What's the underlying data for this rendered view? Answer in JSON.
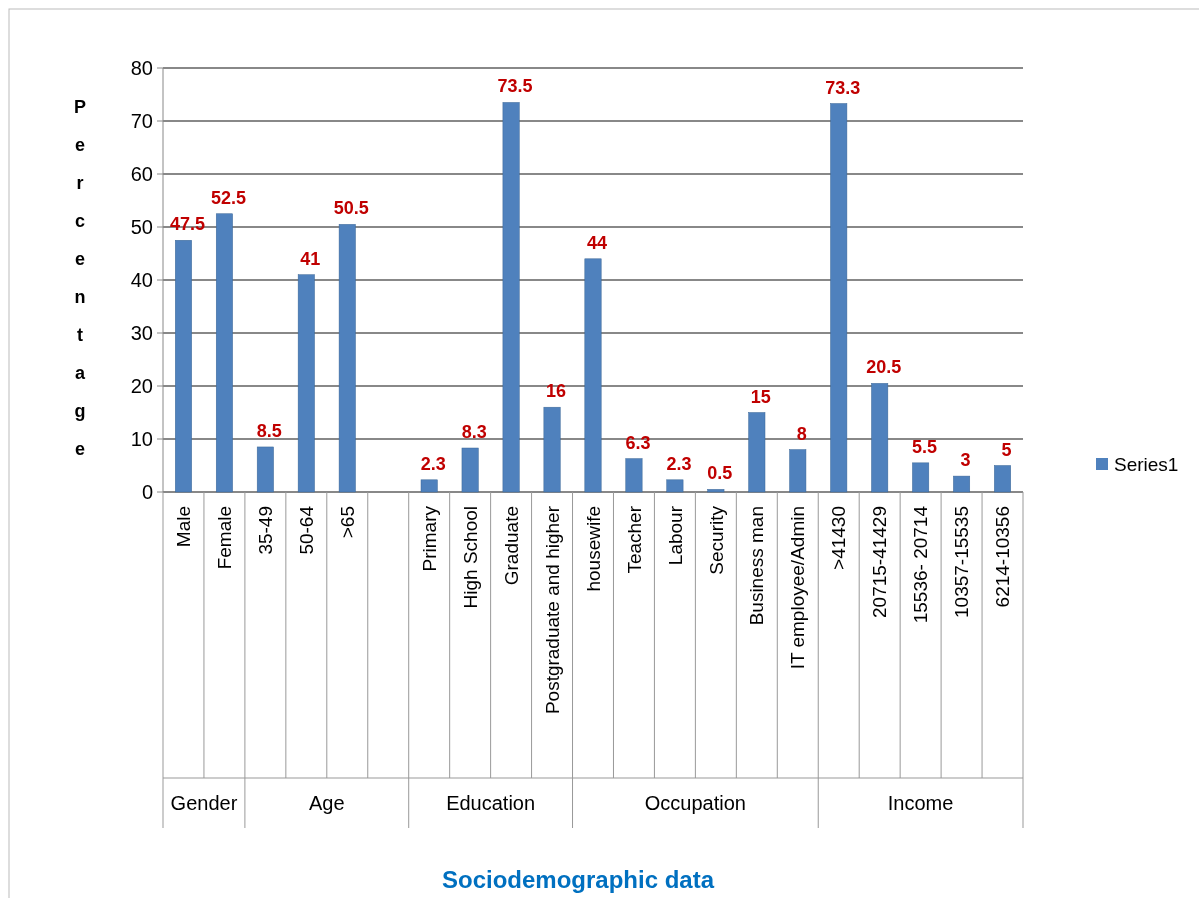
{
  "chart_data": {
    "type": "bar",
    "title": "Sociodemographic data",
    "ylabel": "Percentage",
    "categories": [
      "Male",
      "Female",
      "35-49",
      "50-64",
      ">65",
      null,
      "Primary",
      "High School",
      "Graduate",
      "Postgraduate and higher",
      "housewife",
      "Teacher",
      "Labour",
      "Security",
      "Business man",
      "IT employee/Admin",
      ">41430",
      "20715-41429",
      "15536- 20714",
      "10357-15535",
      "6214-10356"
    ],
    "series": [
      {
        "name": "Series1",
        "color": "#4f81bd",
        "values": [
          47.5,
          52.5,
          8.5,
          41,
          50.5,
          null,
          2.3,
          8.3,
          73.5,
          16,
          44,
          6.3,
          2.3,
          0.5,
          15,
          8,
          73.3,
          20.5,
          5.5,
          3,
          5
        ]
      }
    ],
    "data_labels": true,
    "ylim": [
      0,
      80
    ],
    "yticks": [
      0,
      10,
      20,
      30,
      40,
      50,
      60,
      70,
      80
    ],
    "grid": "y",
    "legend": "right",
    "annotations": [
      "Gender",
      "Age",
      "Education",
      "Occupation",
      "Income"
    ]
  }
}
